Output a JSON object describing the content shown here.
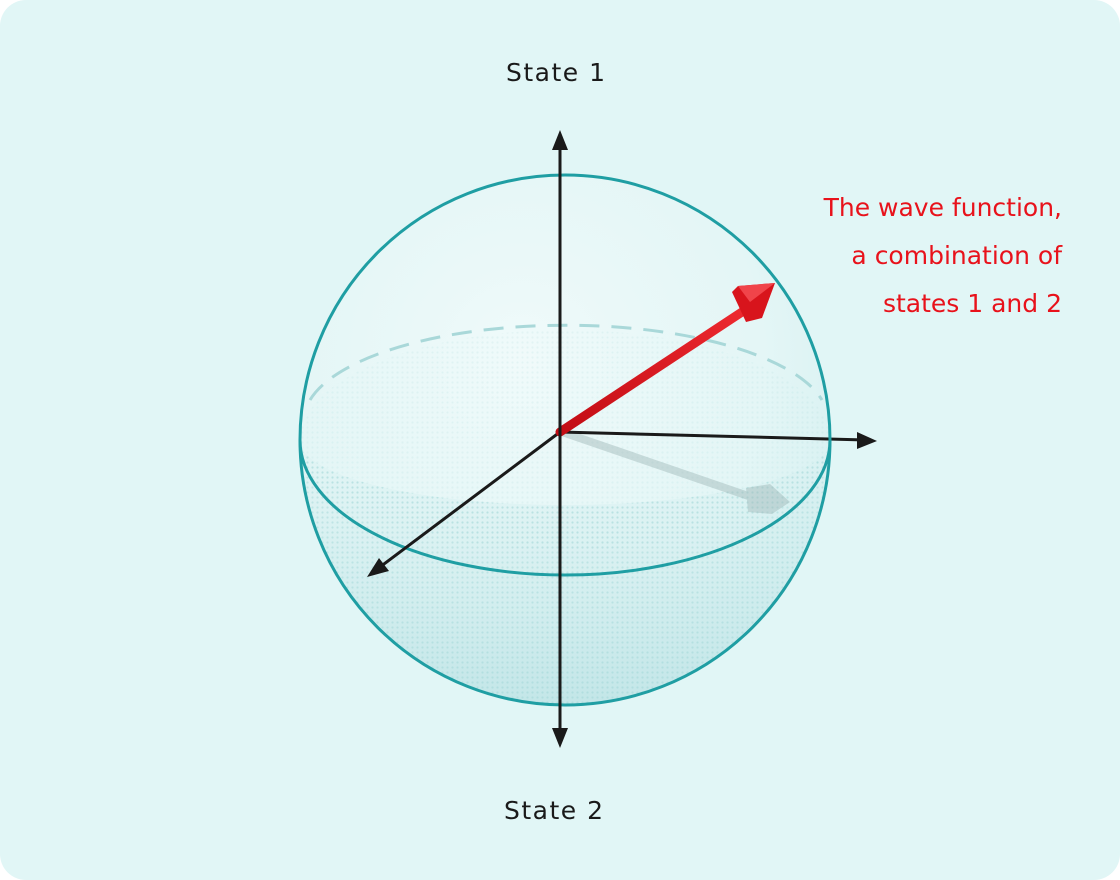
{
  "labels": {
    "top_state": "State 1",
    "bottom_state": "State 2"
  },
  "callout": {
    "lines": [
      "The wave function,",
      "a combination of",
      "states 1 and 2"
    ]
  },
  "colors": {
    "background": "#e1f6f6",
    "sphere_outline": "#1f9ea3",
    "axis": "#1a1a1a",
    "wave_function_arrow": "#e0151e",
    "callout_text": "#e8121b"
  }
}
